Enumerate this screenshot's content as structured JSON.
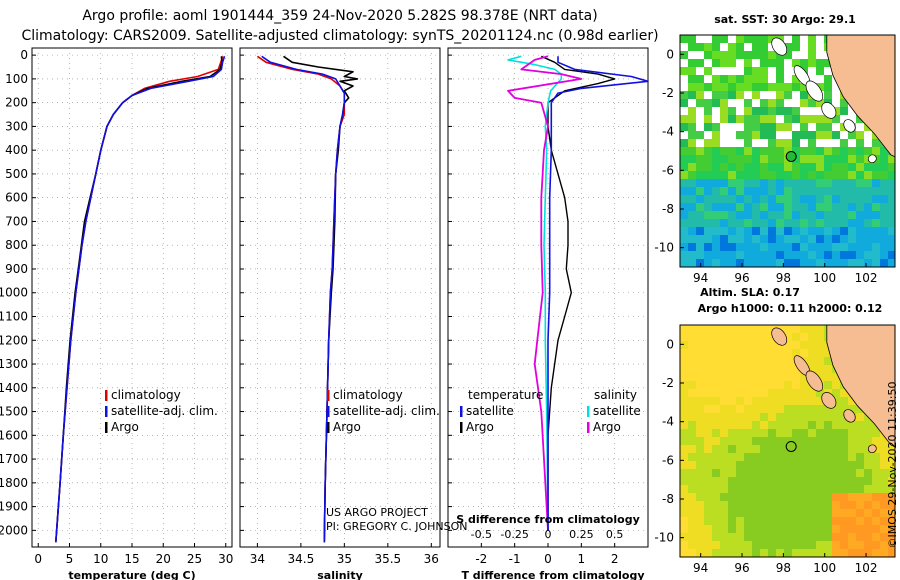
{
  "header": {
    "line1": "Argo profile: aoml 1901444_359 24-Nov-2020 5.282S 98.378E (NRT data)",
    "line2": "Climatology: CARS2009. Satellite-adjusted climatology: synTS_20201124.nc (0.98d earlier)"
  },
  "colors": {
    "climatology": "#e00000",
    "satellite": "#1010e0",
    "argo": "#000000",
    "satellite_salinity": "#00e0e0",
    "argo_salinity": "#e000e0",
    "land": "#f5bd91"
  },
  "depth_ticks": [
    "0",
    "100",
    "200",
    "300",
    "400",
    "500",
    "600",
    "700",
    "800",
    "900",
    "1000",
    "1100",
    "1200",
    "1300",
    "1400",
    "1500",
    "1600",
    "1700",
    "1800",
    "1900",
    "2000"
  ],
  "chart_data": [
    {
      "type": "line",
      "xlabel": "temperature (deg C)",
      "xlim": [
        -1,
        31
      ],
      "ylim": [
        2070,
        -30
      ],
      "x_ticks": [
        "0",
        "5",
        "10",
        "15",
        "20",
        "25",
        "30"
      ],
      "legend": {
        "items": [
          "climatology",
          "satellite-adj. clim.",
          "Argo"
        ]
      },
      "series": [
        {
          "name": "climatology",
          "y": [
            5,
            30,
            60,
            90,
            110,
            140,
            170,
            200,
            250,
            300,
            400,
            500,
            600,
            700,
            800,
            900,
            1000,
            1200,
            1400,
            1600,
            1800,
            2050
          ],
          "values": [
            29.5,
            29.2,
            28.8,
            25.5,
            21,
            17,
            15,
            13.5,
            12,
            11,
            10,
            9.2,
            8.4,
            7.6,
            7,
            6.5,
            6,
            5.2,
            4.6,
            4,
            3.5,
            2.8
          ]
        },
        {
          "name": "satellite-adj. clim.",
          "y": [
            5,
            30,
            60,
            90,
            110,
            140,
            170,
            200,
            250,
            300,
            400,
            500,
            600,
            700,
            800,
            900,
            1000,
            1200,
            1400,
            1600,
            1800,
            2050
          ],
          "values": [
            29.8,
            29.5,
            29.3,
            28,
            24,
            18,
            15,
            13.5,
            12,
            11,
            10,
            9.2,
            8.4,
            7.6,
            7,
            6.5,
            6,
            5.2,
            4.6,
            4,
            3.5,
            2.8
          ]
        },
        {
          "name": "Argo",
          "y": [
            5,
            30,
            60,
            90,
            110,
            140,
            170,
            200,
            250,
            300,
            400,
            500,
            600,
            700,
            800,
            900,
            1000,
            1200,
            1400,
            1600,
            1800,
            2050
          ],
          "values": [
            29.3,
            29.4,
            29.1,
            27.5,
            23,
            17.5,
            15,
            13.5,
            12,
            11,
            10,
            9.2,
            8.3,
            7.4,
            6.9,
            6.4,
            5.9,
            5.1,
            4.5,
            4,
            3.5,
            2.8
          ]
        }
      ]
    },
    {
      "type": "line",
      "xlabel": "salinity",
      "xlim": [
        33.8,
        36.1
      ],
      "ylim": [
        2070,
        -30
      ],
      "x_ticks": [
        "34",
        "34.5",
        "35",
        "35.5",
        "36"
      ],
      "legend": {
        "items": [
          "climatology",
          "satellite-adj. clim.",
          "Argo"
        ]
      },
      "annotations": [
        "US ARGO PROJECT",
        "PI: GREGORY C. JOHNSON"
      ],
      "series": [
        {
          "name": "climatology",
          "y": [
            5,
            30,
            60,
            80,
            100,
            130,
            160,
            200,
            250,
            300,
            400,
            500,
            700,
            900,
            1000,
            1200,
            1500,
            1800,
            2050
          ],
          "values": [
            34.0,
            34.1,
            34.4,
            34.7,
            34.85,
            34.95,
            35.0,
            35.0,
            35.0,
            34.95,
            34.92,
            34.9,
            34.88,
            34.86,
            34.84,
            34.82,
            34.8,
            34.78,
            34.77
          ]
        },
        {
          "name": "satellite-adj. clim.",
          "y": [
            5,
            30,
            60,
            80,
            100,
            130,
            160,
            200,
            250,
            300,
            400,
            500,
            700,
            900,
            1000,
            1200,
            1500,
            1800,
            2050
          ],
          "values": [
            34.05,
            34.15,
            34.45,
            34.75,
            34.9,
            34.95,
            35.0,
            35.0,
            34.98,
            34.95,
            34.92,
            34.9,
            34.88,
            34.86,
            34.84,
            34.82,
            34.8,
            34.78,
            34.77
          ]
        },
        {
          "name": "Argo",
          "y": [
            5,
            30,
            50,
            70,
            90,
            100,
            110,
            130,
            150,
            180,
            200,
            250,
            300,
            400,
            500,
            700,
            900,
            1000,
            1200,
            1500,
            1800,
            2050
          ],
          "values": [
            34.3,
            34.4,
            34.7,
            35.1,
            35.0,
            35.15,
            34.95,
            35.1,
            35.0,
            35.05,
            35.0,
            34.98,
            34.95,
            34.93,
            34.9,
            34.89,
            34.87,
            34.85,
            34.82,
            34.8,
            34.78,
            34.77
          ]
        }
      ]
    },
    {
      "type": "line",
      "xlabel": "T difference from climatology",
      "sub_xlabel": "S difference from climatology",
      "xlim": [
        -3,
        3
      ],
      "ylim": [
        2070,
        -30
      ],
      "x_ticks": [
        "-2",
        "-1",
        "0",
        "1",
        "2"
      ],
      "x2_ticks": [
        "-0.5",
        "-0.25",
        "0",
        "0.25",
        "0.5"
      ],
      "legend": {
        "temperature_title": "temperature",
        "salinity_title": "salinity",
        "items_t": [
          "satellite",
          "Argo"
        ],
        "items_s": [
          "satellite",
          "Argo"
        ]
      },
      "series": [
        {
          "name": "temperature satellite",
          "y": [
            5,
            30,
            60,
            90,
            110,
            140,
            160,
            200,
            250,
            300,
            400,
            600,
            800,
            1000,
            1200,
            1500,
            2000
          ],
          "values": [
            0.3,
            0.3,
            0.8,
            2.5,
            3.0,
            1.0,
            0.3,
            0.1,
            0.1,
            0.1,
            0.1,
            0.05,
            0.05,
            0.05,
            0.0,
            0.0,
            0.0
          ]
        },
        {
          "name": "temperature Argo",
          "y": [
            5,
            30,
            60,
            80,
            100,
            120,
            150,
            200,
            250,
            300,
            400,
            500,
            600,
            700,
            800,
            900,
            1000,
            1100,
            1200,
            1400,
            1600,
            2000
          ],
          "values": [
            -0.2,
            0.2,
            0.5,
            1.5,
            2.0,
            1.5,
            0.5,
            0.0,
            0.0,
            0.0,
            0.1,
            0.3,
            0.5,
            0.6,
            0.6,
            0.55,
            0.7,
            0.5,
            0.3,
            0.1,
            0.0,
            0.0
          ]
        },
        {
          "name": "salinity satellite",
          "y": [
            5,
            20,
            40,
            60,
            80,
            100,
            150,
            200,
            300,
            400,
            600,
            800,
            1000,
            1200,
            1500,
            2000
          ],
          "values": [
            -0.2,
            -0.3,
            -0.1,
            0.05,
            0.1,
            0.1,
            0.02,
            0.0,
            -0.02,
            -0.01,
            -0.02,
            -0.03,
            -0.02,
            -0.02,
            -0.01,
            0.0
          ]
        },
        {
          "name": "salinity Argo",
          "y": [
            5,
            20,
            40,
            60,
            80,
            100,
            150,
            180,
            200,
            300,
            400,
            600,
            800,
            1000,
            1200,
            1300,
            1500,
            2000
          ],
          "values": [
            0.0,
            -0.1,
            -0.15,
            -0.2,
            0.1,
            0.25,
            -0.3,
            -0.25,
            -0.05,
            0.0,
            -0.03,
            -0.05,
            -0.05,
            -0.04,
            -0.08,
            -0.1,
            -0.05,
            0.0
          ]
        }
      ]
    }
  ],
  "maps": {
    "sst": {
      "title": "sat. SST: 30 Argo: 29.1",
      "x_ticks": [
        "94",
        "96",
        "98",
        "100",
        "102"
      ],
      "y_ticks": [
        "0",
        "-2",
        "-4",
        "-6",
        "-8",
        "-10"
      ]
    },
    "sla": {
      "title1": "Altim. SLA: 0.17",
      "title2": "Argo h1000: 0.11 h2000: 0.12",
      "x_ticks": [
        "94",
        "96",
        "98",
        "100",
        "102"
      ],
      "y_ticks": [
        "0",
        "-2",
        "-4",
        "-6",
        "-8",
        "-10"
      ]
    },
    "argo_position": {
      "lon": 98.378,
      "lat": -5.282
    }
  },
  "credit": "©IMOS 29-Nov-2020 11:39:50"
}
